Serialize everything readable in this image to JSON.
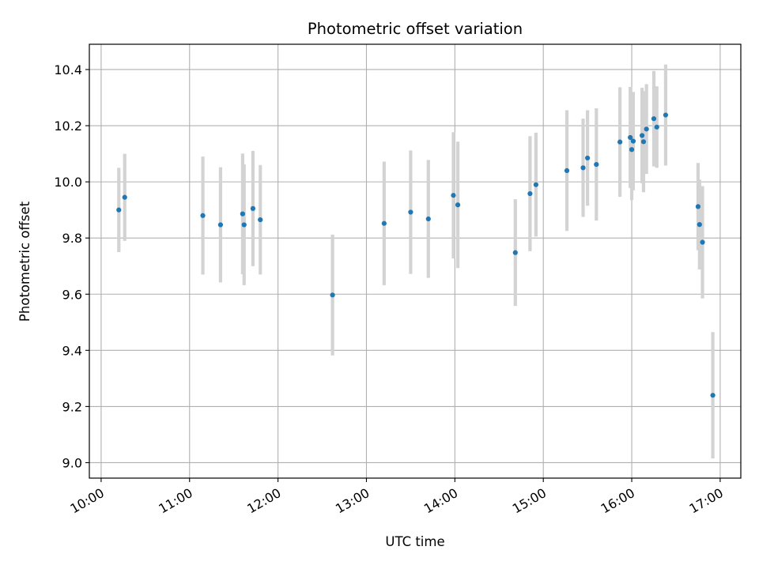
{
  "chart_data": {
    "type": "scatter",
    "title": "Photometric offset variation",
    "xlabel": "UTC time",
    "ylabel": "Photometric offset",
    "xlim": [
      "09:52",
      "17:14"
    ],
    "ylim": [
      8.945,
      10.49
    ],
    "x_ticks": [
      "10:00",
      "11:00",
      "12:00",
      "13:00",
      "14:00",
      "15:00",
      "16:00",
      "17:00"
    ],
    "y_ticks": [
      "9.0",
      "9.2",
      "9.4",
      "9.6",
      "9.8",
      "10.0",
      "10.2",
      "10.4"
    ],
    "grid": true,
    "marker_color": "#1f77b4",
    "errorbar_color": "#d3d3d3",
    "series": [
      {
        "points": [
          {
            "t": "10:12",
            "y": 9.9,
            "err": 0.15
          },
          {
            "t": "10:16",
            "y": 9.945,
            "err": 0.155
          },
          {
            "t": "11:09",
            "y": 9.88,
            "err": 0.21
          },
          {
            "t": "11:21",
            "y": 9.847,
            "err": 0.205
          },
          {
            "t": "11:36",
            "y": 9.886,
            "err": 0.215
          },
          {
            "t": "11:37",
            "y": 9.847,
            "err": 0.215
          },
          {
            "t": "11:43",
            "y": 9.905,
            "err": 0.205
          },
          {
            "t": "11:48",
            "y": 9.865,
            "err": 0.195
          },
          {
            "t": "12:37",
            "y": 9.597,
            "err": 0.215
          },
          {
            "t": "13:12",
            "y": 9.852,
            "err": 0.22
          },
          {
            "t": "13:30",
            "y": 9.892,
            "err": 0.22
          },
          {
            "t": "13:42",
            "y": 9.868,
            "err": 0.21
          },
          {
            "t": "13:59",
            "y": 9.952,
            "err": 0.225
          },
          {
            "t": "14:02",
            "y": 9.918,
            "err": 0.225
          },
          {
            "t": "14:41",
            "y": 9.748,
            "err": 0.19
          },
          {
            "t": "14:51",
            "y": 9.958,
            "err": 0.205
          },
          {
            "t": "14:55",
            "y": 9.99,
            "err": 0.185
          },
          {
            "t": "15:16",
            "y": 10.04,
            "err": 0.215
          },
          {
            "t": "15:27",
            "y": 10.05,
            "err": 0.175
          },
          {
            "t": "15:30",
            "y": 10.085,
            "err": 0.17
          },
          {
            "t": "15:36",
            "y": 10.062,
            "err": 0.2
          },
          {
            "t": "15:52",
            "y": 10.142,
            "err": 0.195
          },
          {
            "t": "15:59",
            "y": 10.158,
            "err": 0.18
          },
          {
            "t": "16:00",
            "y": 10.115,
            "err": 0.18
          },
          {
            "t": "16:01",
            "y": 10.145,
            "err": 0.175
          },
          {
            "t": "16:07",
            "y": 10.165,
            "err": 0.17
          },
          {
            "t": "16:08",
            "y": 10.143,
            "err": 0.18
          },
          {
            "t": "16:10",
            "y": 10.188,
            "err": 0.16
          },
          {
            "t": "16:15",
            "y": 10.225,
            "err": 0.17
          },
          {
            "t": "16:17",
            "y": 10.195,
            "err": 0.145
          },
          {
            "t": "16:23",
            "y": 10.238,
            "err": 0.18
          },
          {
            "t": "16:45",
            "y": 9.912,
            "err": 0.155
          },
          {
            "t": "16:46",
            "y": 9.848,
            "err": 0.16
          },
          {
            "t": "16:48",
            "y": 9.785,
            "err": 0.2
          },
          {
            "t": "16:55",
            "y": 9.24,
            "err": 0.225
          }
        ]
      }
    ]
  }
}
